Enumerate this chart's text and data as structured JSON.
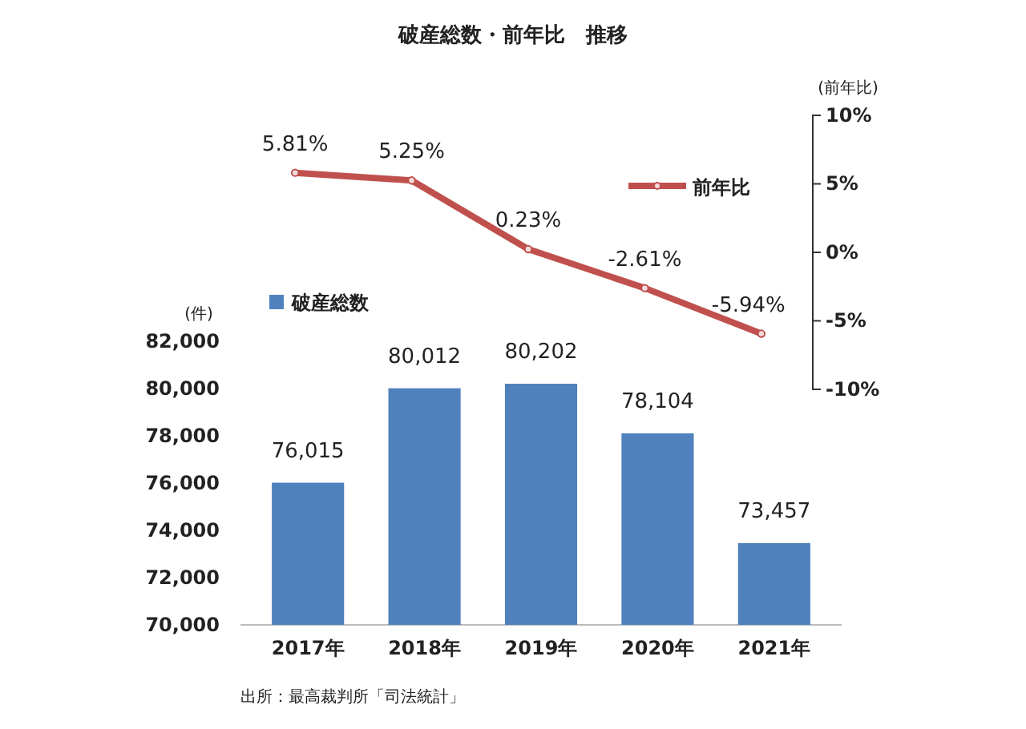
{
  "chart_data": [
    {
      "type": "line",
      "title": "破産総数・前年比　推移",
      "ylabel": "(前年比)",
      "categories": [
        null,
        null,
        null,
        null,
        null
      ],
      "series": [
        {
          "name": "前年比",
          "color": "#c0504d",
          "values": [
            5.81,
            5.25,
            0.23,
            -2.61,
            -5.94
          ],
          "value_labels": [
            "5.81%",
            "5.25%",
            "0.23%",
            "-2.61%",
            "-5.94%"
          ]
        }
      ],
      "ylim": [
        -10,
        10
      ],
      "yticks": [
        {
          "value": -10,
          "label": "-10%"
        },
        {
          "value": -5,
          "label": "-5%"
        },
        {
          "value": 0,
          "label": "0%"
        },
        {
          "value": 5,
          "label": "5%"
        },
        {
          "value": 10,
          "label": "10%"
        }
      ],
      "tick_labels": "y",
      "marker": "circle",
      "line_style": "solid",
      "legend": "right"
    },
    {
      "type": "bar",
      "ylabel": "(件)",
      "categories": [
        "2017年",
        "2018年",
        "2019年",
        "2020年",
        "2021年"
      ],
      "series": [
        {
          "name": "破産総数",
          "color": "#4f81bd",
          "values": [
            76015,
            80012,
            80202,
            78104,
            73457
          ],
          "value_labels": [
            "76,015",
            "80,012",
            "80,202",
            "78,104",
            "73,457"
          ]
        }
      ],
      "ylim": [
        70000,
        82000
      ],
      "yticks": [
        {
          "value": 70000,
          "label": "70,000"
        },
        {
          "value": 72000,
          "label": "72,000"
        },
        {
          "value": 74000,
          "label": "74,000"
        },
        {
          "value": 76000,
          "label": "76,000"
        },
        {
          "value": 78000,
          "label": "78,000"
        },
        {
          "value": 80000,
          "label": "80,000"
        },
        {
          "value": 82000,
          "label": "82,000"
        }
      ],
      "legend": "top left",
      "annotations": [
        "出所：最高裁判所「司法統計」"
      ]
    }
  ]
}
